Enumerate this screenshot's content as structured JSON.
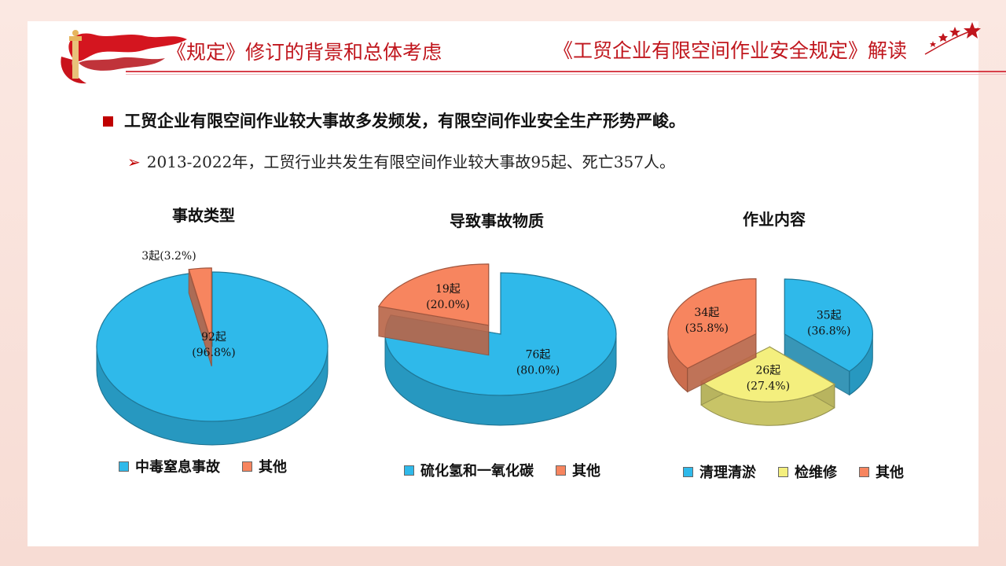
{
  "header": {
    "left_title": "《规定》修订的背景和总体考虑",
    "right_title": "《工贸企业有限空间作业安全规定》解读"
  },
  "content": {
    "main_bullet": "工贸企业有限空间作业较大事故多发频发，有限空间作业安全生产形势严峻。",
    "sub_bullet": "2013-2022年，工贸行业共发生有限空间作业较大事故95起、死亡357人。"
  },
  "colors": {
    "accent": "#c00000",
    "blue": "#2fb9ea",
    "orange": "#f7855f",
    "yellow": "#f4ef7e"
  },
  "chart_data": [
    {
      "type": "pie",
      "title": "事故类型",
      "series": [
        {
          "name": "中毒窒息事故",
          "value": 92,
          "label": "92起",
          "pct": "(96.8%)",
          "color": "#2fb9ea"
        },
        {
          "name": "其他",
          "value": 3,
          "label": "3起(3.2%)",
          "pct": "",
          "color": "#f7855f"
        }
      ]
    },
    {
      "type": "pie",
      "title": "导致事故物质",
      "series": [
        {
          "name": "硫化氢和一氧化碳",
          "value": 76,
          "label": "76起",
          "pct": "(80.0%)",
          "color": "#2fb9ea"
        },
        {
          "name": "其他",
          "value": 19,
          "label": "19起",
          "pct": "(20.0%)",
          "color": "#f7855f"
        }
      ]
    },
    {
      "type": "pie",
      "title": "作业内容",
      "series": [
        {
          "name": "清理清淤",
          "value": 35,
          "label": "35起",
          "pct": "(36.8%)",
          "color": "#2fb9ea"
        },
        {
          "name": "检维修",
          "value": 26,
          "label": "26起",
          "pct": "(27.4%)",
          "color": "#f4ef7e"
        },
        {
          "name": "其他",
          "value": 34,
          "label": "34起",
          "pct": "(35.8%)",
          "color": "#f7855f"
        }
      ]
    }
  ]
}
